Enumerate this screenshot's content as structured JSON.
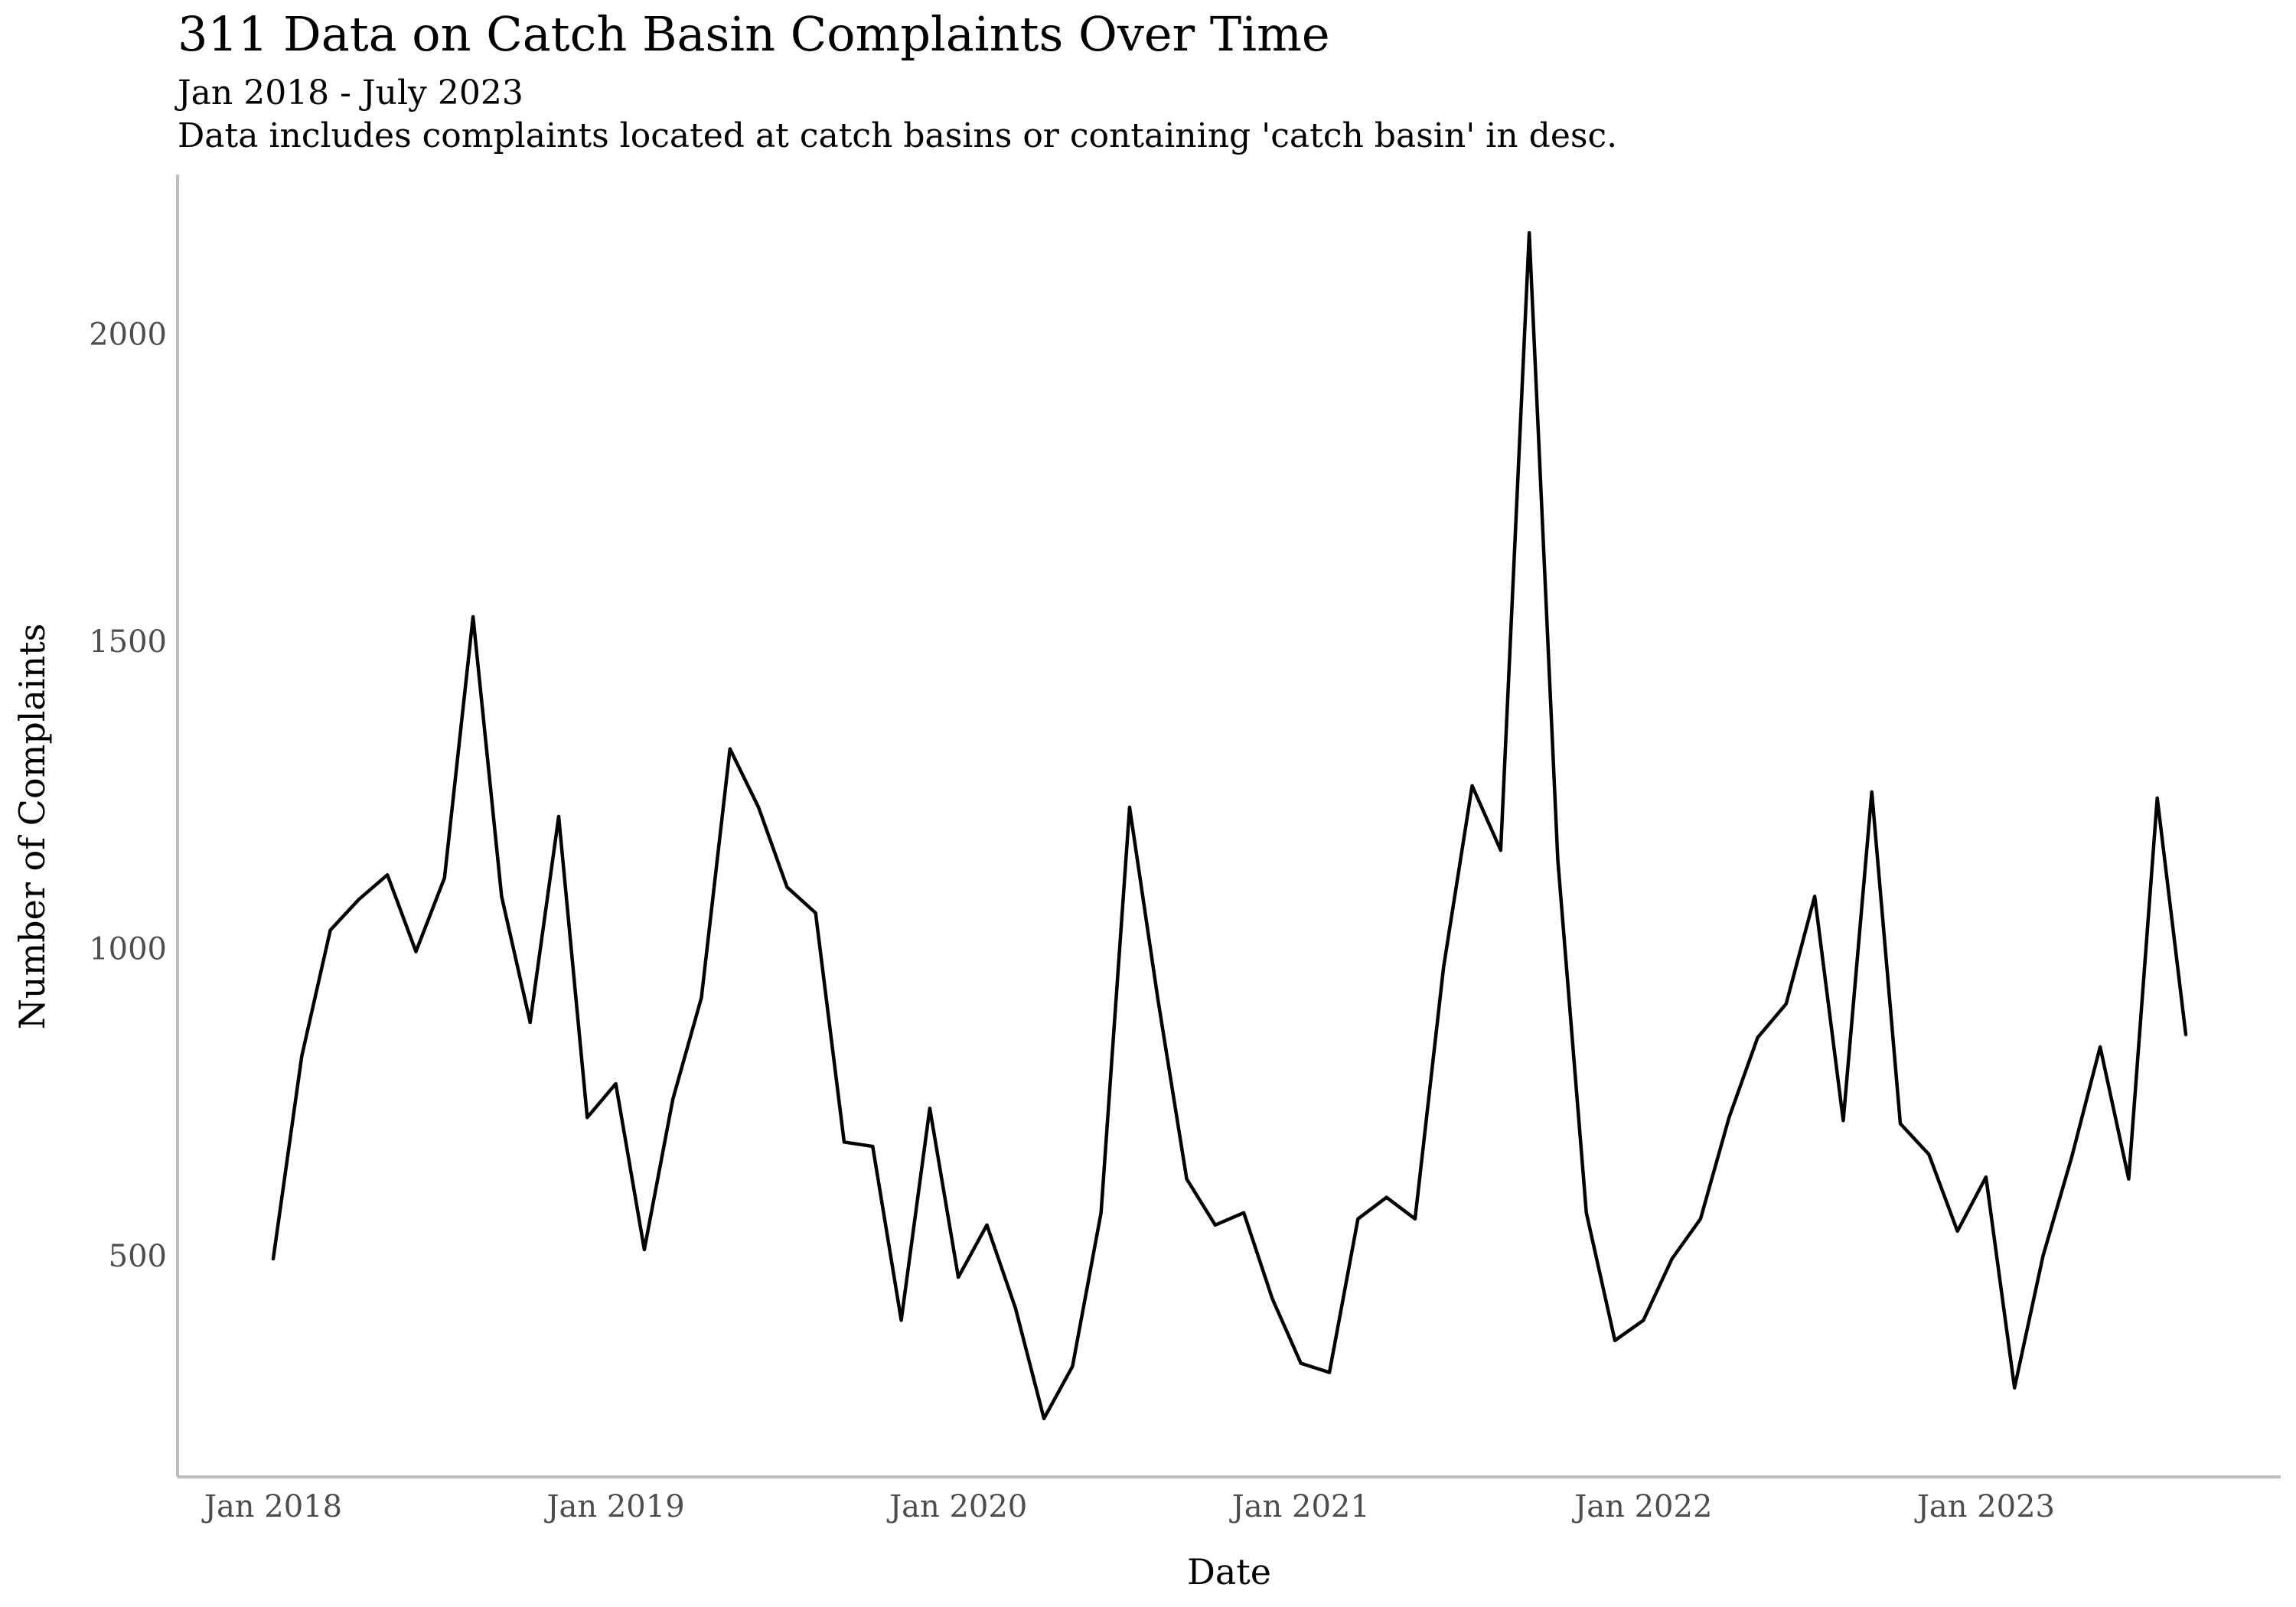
{
  "chart_data": {
    "type": "line",
    "title": "311 Data on Catch Basin Complaints Over Time",
    "subtitle": "Jan 2018 - July 2023",
    "caption": "Data includes complaints located at catch basins or containing 'catch basin' in desc.",
    "xlabel": "Date",
    "ylabel": "Number of Complaints",
    "x_start": "Jan 2018",
    "x_end": "July 2023",
    "x_ticks": [
      "Jan 2018",
      "Jan 2019",
      "Jan 2020",
      "Jan 2021",
      "Jan 2022",
      "Jan 2023"
    ],
    "y_ticks": [
      500,
      1000,
      1500,
      2000
    ],
    "ylim": [
      140,
      2260
    ],
    "grid": false,
    "series": [
      {
        "name": "Number of Complaints",
        "color": "#000000",
        "values": [
          495,
          825,
          1030,
          1080,
          1120,
          995,
          1115,
          1540,
          1085,
          880,
          1215,
          725,
          780,
          510,
          755,
          920,
          1325,
          1230,
          1100,
          1058,
          685,
          678,
          395,
          740,
          465,
          550,
          415,
          235,
          320,
          570,
          1230,
          915,
          625,
          550,
          570,
          430,
          325,
          310,
          560,
          595,
          560,
          970,
          1265,
          1160,
          2165,
          1145,
          570,
          362,
          395,
          495,
          560,
          725,
          855,
          910,
          1085,
          720,
          1255,
          715,
          665,
          540,
          628,
          285,
          500,
          660,
          840,
          625,
          1245,
          860
        ]
      }
    ]
  }
}
